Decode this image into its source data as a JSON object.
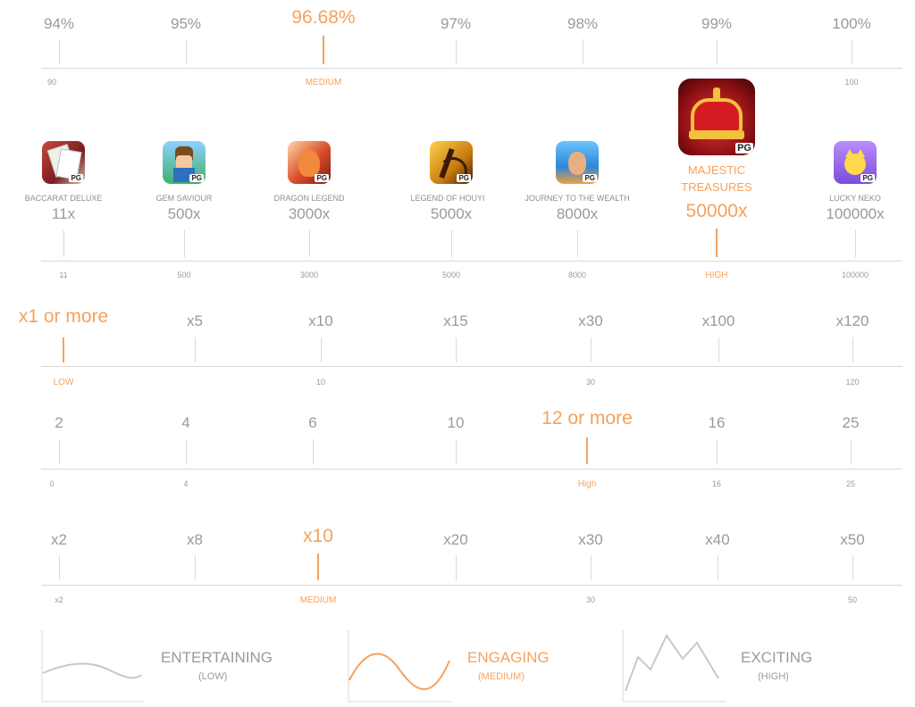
{
  "rtp_row": {
    "labels": [
      "94%",
      "95%",
      "96.68%",
      "97%",
      "98%",
      "99%",
      "100%"
    ],
    "axis_left": "90",
    "axis_mid": "MEDIUM",
    "axis_right": "100"
  },
  "games_row": {
    "games": [
      {
        "name": "BACCARAT DELUXE",
        "value": "11x",
        "axis": "11"
      },
      {
        "name": "GEM SAVIOUR",
        "value": "500x",
        "axis": "500"
      },
      {
        "name": "DRAGON LEGEND",
        "value": "3000x",
        "axis": "3000"
      },
      {
        "name": "LEGEND OF HOUYI",
        "value": "5000x",
        "axis": "5000"
      },
      {
        "name": "JOURNEY TO THE WEALTH",
        "value": "8000x",
        "axis": "8000"
      },
      {
        "name_line1": "MAJESTIC",
        "name_line2": "TREASURES",
        "value": "50000x",
        "axis": "HIGH"
      },
      {
        "name": "LUCKY NEKO",
        "value": "100000x",
        "axis": "100000"
      }
    ],
    "badge": "PG"
  },
  "row3": {
    "labels": [
      "x1 or more",
      "x5",
      "x10",
      "x15",
      "x30",
      "x100",
      "x120"
    ],
    "axis": [
      "LOW",
      "10",
      "30",
      "120"
    ]
  },
  "row4": {
    "labels": [
      "2",
      "4",
      "6",
      "10",
      "12 or more",
      "16",
      "25"
    ],
    "axis": [
      "0",
      "4",
      "High",
      "16",
      "25"
    ]
  },
  "row5": {
    "labels": [
      "x2",
      "x8",
      "x10",
      "x20",
      "x30",
      "x40",
      "x50"
    ],
    "axis": [
      "x2",
      "MEDIUM",
      "30",
      "50"
    ]
  },
  "legend": [
    {
      "title": "ENTERTAINING",
      "sub": "(LOW)"
    },
    {
      "title": "ENGAGING",
      "sub": "(MEDIUM)"
    },
    {
      "title": "EXCITING",
      "sub": "(HIGH)"
    }
  ],
  "colors": {
    "accent": "#f5a25d",
    "grey": "#9a9a9a",
    "line": "#d9d9d9"
  }
}
